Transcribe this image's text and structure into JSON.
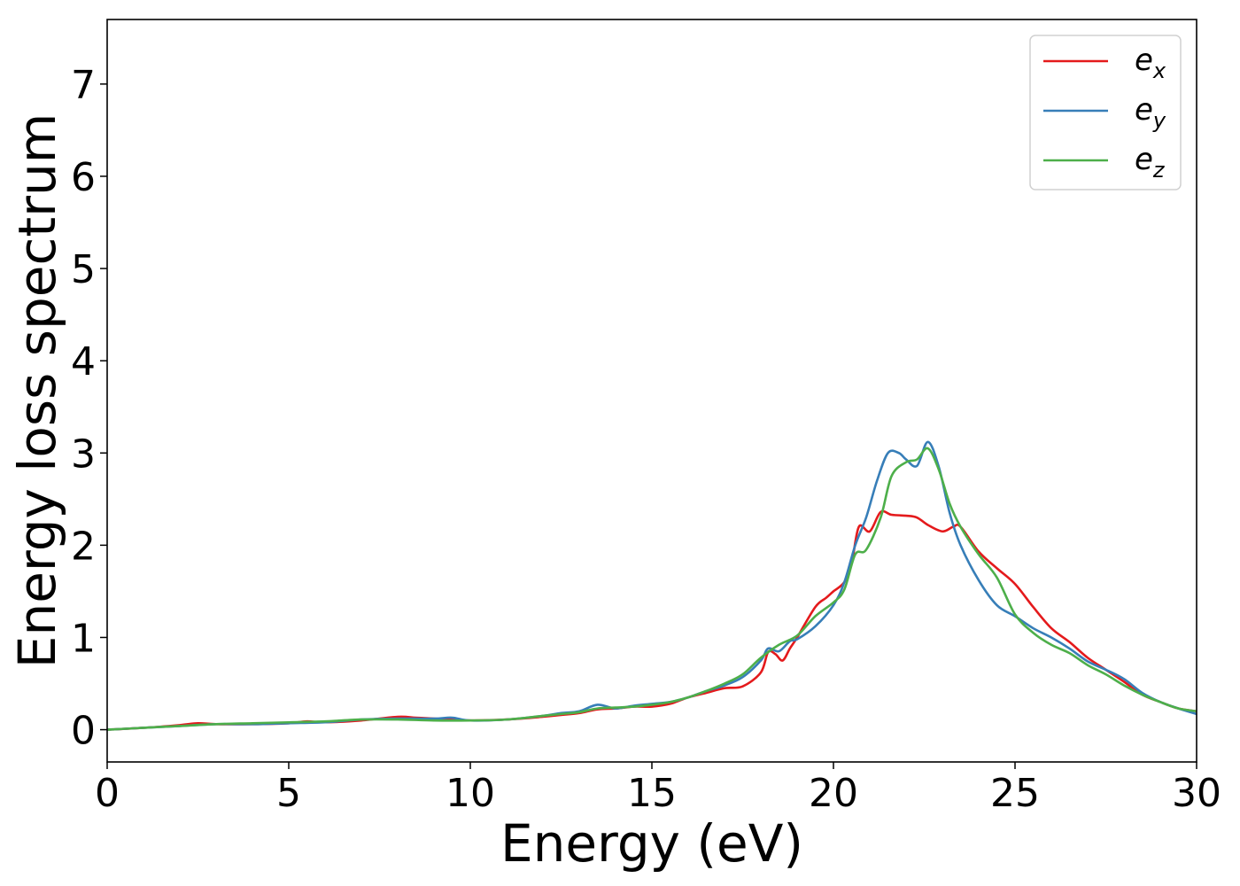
{
  "chart_data": {
    "type": "line",
    "xlabel": "Energy (eV)",
    "ylabel": "Energy loss spectrum",
    "xlim": [
      0,
      30
    ],
    "ylim": [
      -0.35,
      7.7
    ],
    "xticks": [
      "0",
      "5",
      "10",
      "15",
      "20",
      "25",
      "30"
    ],
    "yticks": [
      "0",
      "1",
      "2",
      "3",
      "4",
      "5",
      "6",
      "7"
    ],
    "grid": false,
    "legend_position": "top-right",
    "series": [
      {
        "name": "e",
        "subscript": "x",
        "color": "#e41a1c",
        "points": [
          [
            0,
            0.0
          ],
          [
            1,
            0.02
          ],
          [
            2,
            0.05
          ],
          [
            2.5,
            0.07
          ],
          [
            3,
            0.06
          ],
          [
            4,
            0.06
          ],
          [
            5,
            0.07
          ],
          [
            5.5,
            0.09
          ],
          [
            6,
            0.08
          ],
          [
            7,
            0.1
          ],
          [
            8,
            0.14
          ],
          [
            8.5,
            0.13
          ],
          [
            9,
            0.12
          ],
          [
            10,
            0.1
          ],
          [
            11,
            0.11
          ],
          [
            12,
            0.14
          ],
          [
            12.5,
            0.16
          ],
          [
            13,
            0.18
          ],
          [
            13.5,
            0.22
          ],
          [
            14,
            0.23
          ],
          [
            14.5,
            0.25
          ],
          [
            15,
            0.25
          ],
          [
            15.5,
            0.28
          ],
          [
            16,
            0.35
          ],
          [
            16.5,
            0.4
          ],
          [
            17,
            0.45
          ],
          [
            17.5,
            0.47
          ],
          [
            18,
            0.62
          ],
          [
            18.2,
            0.84
          ],
          [
            18.4,
            0.82
          ],
          [
            18.6,
            0.75
          ],
          [
            18.8,
            0.88
          ],
          [
            19,
            1.0
          ],
          [
            19.5,
            1.33
          ],
          [
            19.8,
            1.43
          ],
          [
            20,
            1.5
          ],
          [
            20.3,
            1.6
          ],
          [
            20.5,
            1.8
          ],
          [
            20.7,
            2.2
          ],
          [
            21,
            2.15
          ],
          [
            21.3,
            2.36
          ],
          [
            21.6,
            2.33
          ],
          [
            22,
            2.32
          ],
          [
            22.3,
            2.3
          ],
          [
            22.6,
            2.22
          ],
          [
            23,
            2.15
          ],
          [
            23.3,
            2.2
          ],
          [
            23.5,
            2.2
          ],
          [
            24,
            1.93
          ],
          [
            24.5,
            1.75
          ],
          [
            25,
            1.58
          ],
          [
            25.5,
            1.33
          ],
          [
            26,
            1.1
          ],
          [
            26.5,
            0.95
          ],
          [
            27,
            0.78
          ],
          [
            27.5,
            0.65
          ],
          [
            28,
            0.52
          ],
          [
            28.5,
            0.38
          ],
          [
            29,
            0.3
          ],
          [
            29.5,
            0.23
          ],
          [
            30,
            0.2
          ]
        ]
      },
      {
        "name": "e",
        "subscript": "y",
        "color": "#377eb8",
        "points": [
          [
            0,
            0.0
          ],
          [
            1,
            0.02
          ],
          [
            2,
            0.04
          ],
          [
            3,
            0.06
          ],
          [
            4,
            0.06
          ],
          [
            5,
            0.07
          ],
          [
            6,
            0.08
          ],
          [
            7,
            0.11
          ],
          [
            8,
            0.12
          ],
          [
            9,
            0.12
          ],
          [
            9.5,
            0.13
          ],
          [
            10,
            0.1
          ],
          [
            11,
            0.11
          ],
          [
            12,
            0.15
          ],
          [
            12.5,
            0.18
          ],
          [
            13,
            0.2
          ],
          [
            13.5,
            0.27
          ],
          [
            14,
            0.23
          ],
          [
            14.5,
            0.26
          ],
          [
            15,
            0.28
          ],
          [
            15.5,
            0.3
          ],
          [
            16,
            0.35
          ],
          [
            16.5,
            0.42
          ],
          [
            17,
            0.48
          ],
          [
            17.5,
            0.57
          ],
          [
            18,
            0.75
          ],
          [
            18.2,
            0.88
          ],
          [
            18.5,
            0.85
          ],
          [
            18.8,
            0.96
          ],
          [
            19,
            0.98
          ],
          [
            19.5,
            1.12
          ],
          [
            20,
            1.35
          ],
          [
            20.3,
            1.6
          ],
          [
            20.6,
            2.0
          ],
          [
            20.9,
            2.3
          ],
          [
            21.2,
            2.7
          ],
          [
            21.5,
            3.0
          ],
          [
            21.8,
            3.0
          ],
          [
            22,
            2.93
          ],
          [
            22.3,
            2.86
          ],
          [
            22.6,
            3.12
          ],
          [
            22.9,
            2.85
          ],
          [
            23.2,
            2.35
          ],
          [
            23.5,
            2.0
          ],
          [
            24,
            1.62
          ],
          [
            24.5,
            1.35
          ],
          [
            25,
            1.23
          ],
          [
            25.5,
            1.1
          ],
          [
            26,
            1.0
          ],
          [
            26.5,
            0.88
          ],
          [
            27,
            0.74
          ],
          [
            27.5,
            0.65
          ],
          [
            28,
            0.55
          ],
          [
            28.5,
            0.4
          ],
          [
            29,
            0.3
          ],
          [
            29.5,
            0.23
          ],
          [
            30,
            0.17
          ]
        ]
      },
      {
        "name": "e",
        "subscript": "z",
        "color": "#4daf4a",
        "points": [
          [
            0,
            0.0
          ],
          [
            1,
            0.02
          ],
          [
            2,
            0.04
          ],
          [
            3,
            0.06
          ],
          [
            4,
            0.07
          ],
          [
            5,
            0.08
          ],
          [
            6,
            0.09
          ],
          [
            7,
            0.11
          ],
          [
            8,
            0.11
          ],
          [
            9,
            0.1
          ],
          [
            10,
            0.1
          ],
          [
            11,
            0.11
          ],
          [
            12,
            0.15
          ],
          [
            12.5,
            0.17
          ],
          [
            13,
            0.19
          ],
          [
            13.5,
            0.23
          ],
          [
            14,
            0.24
          ],
          [
            14.5,
            0.25
          ],
          [
            15,
            0.27
          ],
          [
            15.5,
            0.3
          ],
          [
            16,
            0.35
          ],
          [
            16.5,
            0.42
          ],
          [
            17,
            0.5
          ],
          [
            17.5,
            0.6
          ],
          [
            18,
            0.78
          ],
          [
            18.5,
            0.92
          ],
          [
            19,
            1.02
          ],
          [
            19.5,
            1.23
          ],
          [
            20,
            1.38
          ],
          [
            20.3,
            1.52
          ],
          [
            20.6,
            1.9
          ],
          [
            20.9,
            1.95
          ],
          [
            21.3,
            2.3
          ],
          [
            21.6,
            2.75
          ],
          [
            22,
            2.9
          ],
          [
            22.3,
            2.93
          ],
          [
            22.6,
            3.05
          ],
          [
            22.9,
            2.82
          ],
          [
            23.2,
            2.45
          ],
          [
            23.5,
            2.2
          ],
          [
            24,
            1.9
          ],
          [
            24.5,
            1.65
          ],
          [
            25,
            1.25
          ],
          [
            25.5,
            1.05
          ],
          [
            26,
            0.92
          ],
          [
            26.5,
            0.83
          ],
          [
            27,
            0.7
          ],
          [
            27.5,
            0.6
          ],
          [
            28,
            0.48
          ],
          [
            28.5,
            0.38
          ],
          [
            29,
            0.3
          ],
          [
            29.5,
            0.23
          ],
          [
            30,
            0.2
          ]
        ]
      }
    ]
  }
}
